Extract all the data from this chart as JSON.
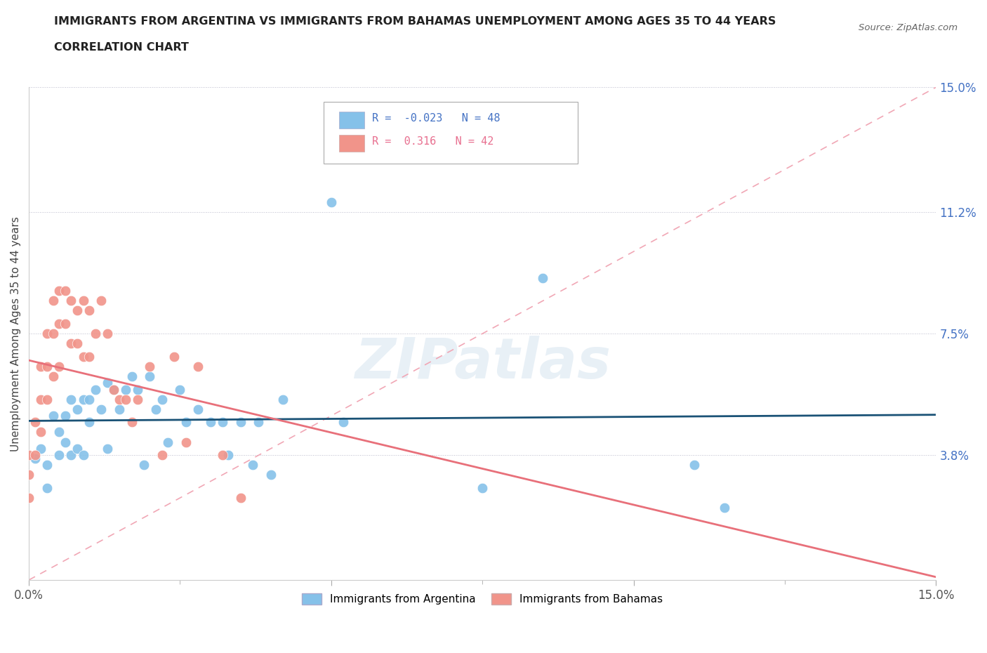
{
  "title_line1": "IMMIGRANTS FROM ARGENTINA VS IMMIGRANTS FROM BAHAMAS UNEMPLOYMENT AMONG AGES 35 TO 44 YEARS",
  "title_line2": "CORRELATION CHART",
  "source": "Source: ZipAtlas.com",
  "ylabel": "Unemployment Among Ages 35 to 44 years",
  "xmin": 0.0,
  "xmax": 0.15,
  "ymin": 0.0,
  "ymax": 0.15,
  "argentina_color": "#85C1E9",
  "bahamas_color": "#F1948A",
  "argentina_R": -0.023,
  "argentina_N": 48,
  "bahamas_R": 0.316,
  "bahamas_N": 42,
  "regression_line_argentina_color": "#1A5276",
  "regression_line_bahamas_color": "#E8707A",
  "diagonal_line_color": "#F1A7B5",
  "watermark": "ZIPatlas",
  "argentina_x": [
    0.001,
    0.002,
    0.003,
    0.003,
    0.004,
    0.005,
    0.005,
    0.006,
    0.006,
    0.007,
    0.007,
    0.008,
    0.008,
    0.009,
    0.009,
    0.01,
    0.01,
    0.011,
    0.012,
    0.013,
    0.013,
    0.014,
    0.015,
    0.016,
    0.017,
    0.018,
    0.019,
    0.02,
    0.021,
    0.022,
    0.023,
    0.025,
    0.026,
    0.028,
    0.03,
    0.032,
    0.033,
    0.035,
    0.037,
    0.038,
    0.04,
    0.042,
    0.05,
    0.052,
    0.075,
    0.085,
    0.11,
    0.115
  ],
  "argentina_y": [
    0.037,
    0.04,
    0.035,
    0.028,
    0.05,
    0.045,
    0.038,
    0.05,
    0.042,
    0.055,
    0.038,
    0.052,
    0.04,
    0.055,
    0.038,
    0.055,
    0.048,
    0.058,
    0.052,
    0.06,
    0.04,
    0.058,
    0.052,
    0.058,
    0.062,
    0.058,
    0.035,
    0.062,
    0.052,
    0.055,
    0.042,
    0.058,
    0.048,
    0.052,
    0.048,
    0.048,
    0.038,
    0.048,
    0.035,
    0.048,
    0.032,
    0.055,
    0.115,
    0.048,
    0.028,
    0.092,
    0.035,
    0.022
  ],
  "bahamas_x": [
    0.0,
    0.0,
    0.0,
    0.001,
    0.001,
    0.002,
    0.002,
    0.002,
    0.003,
    0.003,
    0.003,
    0.004,
    0.004,
    0.004,
    0.005,
    0.005,
    0.005,
    0.006,
    0.006,
    0.007,
    0.007,
    0.008,
    0.008,
    0.009,
    0.009,
    0.01,
    0.01,
    0.011,
    0.012,
    0.013,
    0.014,
    0.015,
    0.016,
    0.017,
    0.018,
    0.02,
    0.022,
    0.024,
    0.026,
    0.028,
    0.032,
    0.035
  ],
  "bahamas_y": [
    0.038,
    0.032,
    0.025,
    0.048,
    0.038,
    0.065,
    0.055,
    0.045,
    0.075,
    0.065,
    0.055,
    0.085,
    0.075,
    0.062,
    0.088,
    0.078,
    0.065,
    0.088,
    0.078,
    0.085,
    0.072,
    0.082,
    0.072,
    0.085,
    0.068,
    0.082,
    0.068,
    0.075,
    0.085,
    0.075,
    0.058,
    0.055,
    0.055,
    0.048,
    0.055,
    0.065,
    0.038,
    0.068,
    0.042,
    0.065,
    0.038,
    0.025
  ]
}
